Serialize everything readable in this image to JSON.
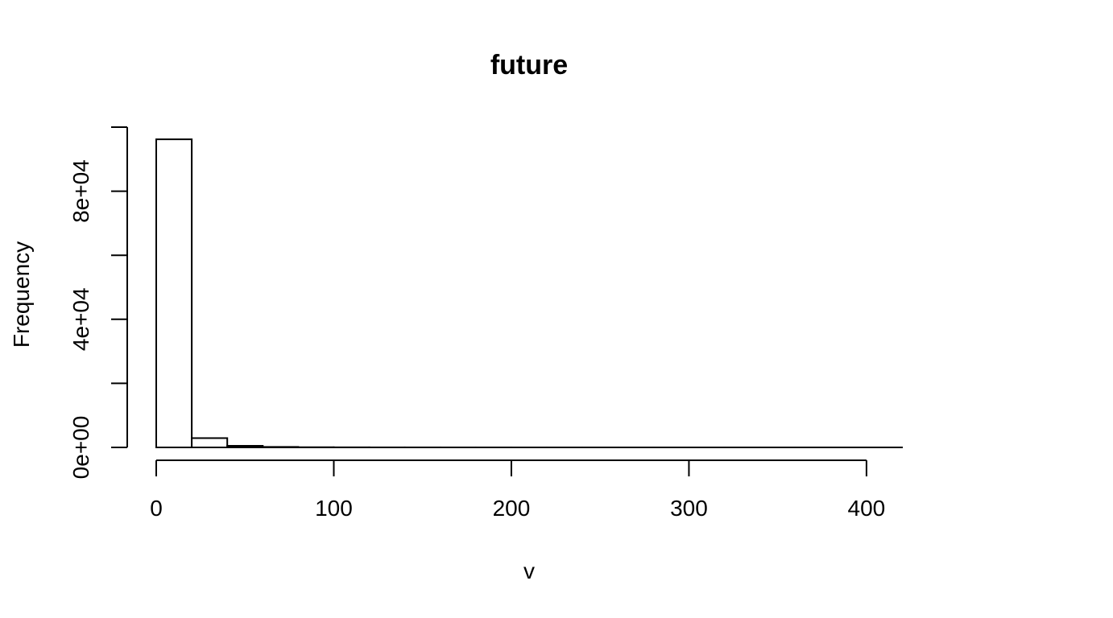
{
  "chart_data": {
    "type": "bar",
    "subtype": "histogram",
    "title": "future",
    "xlabel": "v",
    "ylabel": "Frequency",
    "bin_width": 20,
    "bins": [
      {
        "start": 0,
        "end": 20,
        "count": 96200
      },
      {
        "start": 20,
        "end": 40,
        "count": 2900
      },
      {
        "start": 40,
        "end": 60,
        "count": 500
      },
      {
        "start": 60,
        "end": 80,
        "count": 150
      },
      {
        "start": 80,
        "end": 100,
        "count": 60
      },
      {
        "start": 100,
        "end": 120,
        "count": 30
      },
      {
        "start": 120,
        "end": 140,
        "count": 15
      },
      {
        "start": 140,
        "end": 160,
        "count": 10
      },
      {
        "start": 160,
        "end": 180,
        "count": 6
      },
      {
        "start": 180,
        "end": 200,
        "count": 4
      },
      {
        "start": 200,
        "end": 220,
        "count": 3
      },
      {
        "start": 220,
        "end": 240,
        "count": 2
      },
      {
        "start": 240,
        "end": 260,
        "count": 2
      },
      {
        "start": 260,
        "end": 280,
        "count": 1
      },
      {
        "start": 280,
        "end": 300,
        "count": 1
      },
      {
        "start": 300,
        "end": 320,
        "count": 1
      },
      {
        "start": 320,
        "end": 340,
        "count": 1
      },
      {
        "start": 340,
        "end": 360,
        "count": 1
      },
      {
        "start": 360,
        "end": 380,
        "count": 1
      },
      {
        "start": 380,
        "end": 400,
        "count": 1
      },
      {
        "start": 400,
        "end": 420,
        "count": 1
      }
    ],
    "x_ticks": [
      0,
      100,
      200,
      300,
      400
    ],
    "x_tick_labels": [
      "0",
      "100",
      "200",
      "300",
      "400"
    ],
    "y_ticks": [
      0,
      20000,
      40000,
      60000,
      80000,
      100000
    ],
    "y_tick_labels": [
      "0e+00",
      "",
      "4e+04",
      "",
      "8e+04",
      ""
    ],
    "xlim": [
      0,
      420
    ],
    "ylim": [
      0,
      100000
    ],
    "grid": false,
    "bar_fill": "#ffffff",
    "bar_stroke": "#000000"
  }
}
